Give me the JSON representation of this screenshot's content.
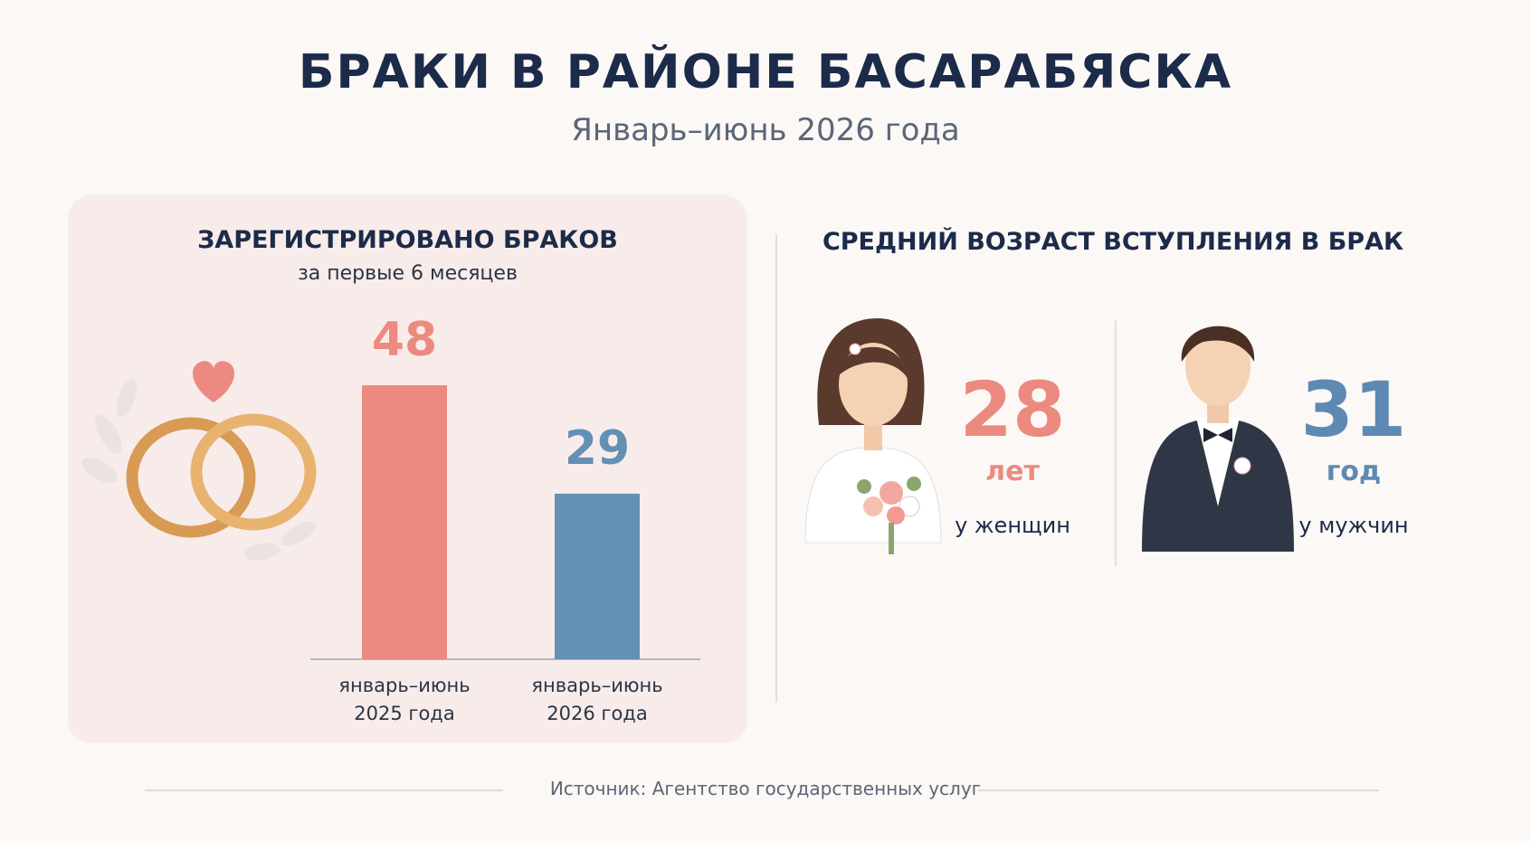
{
  "header": {
    "title": "БРАКИ В РАЙОНЕ БАСАРАБЯСКА",
    "subtitle": "Январь–июнь 2026 года"
  },
  "chart_data": {
    "type": "bar",
    "title": "ЗАРЕГИСТРИРОВАНО БРАКОВ",
    "subtitle": "за первые 6 месяцев",
    "categories": [
      "январь–июнь 2025 года",
      "январь–июнь 2026 года"
    ],
    "values": [
      48,
      29
    ],
    "colors": [
      "#ec8a80",
      "#6590b5"
    ]
  },
  "ages": {
    "title": "СРЕДНИЙ ВОЗРАСТ ВСТУПЛЕНИЯ В БРАК",
    "items": [
      {
        "value": 28,
        "unit": "лет",
        "label": "у женщин",
        "color": "#ec8a80"
      },
      {
        "value": 31,
        "unit": "год",
        "label": "у мужчин",
        "color": "#5e89b2"
      }
    ]
  },
  "source": "Источник: Агентство государственных услуг"
}
